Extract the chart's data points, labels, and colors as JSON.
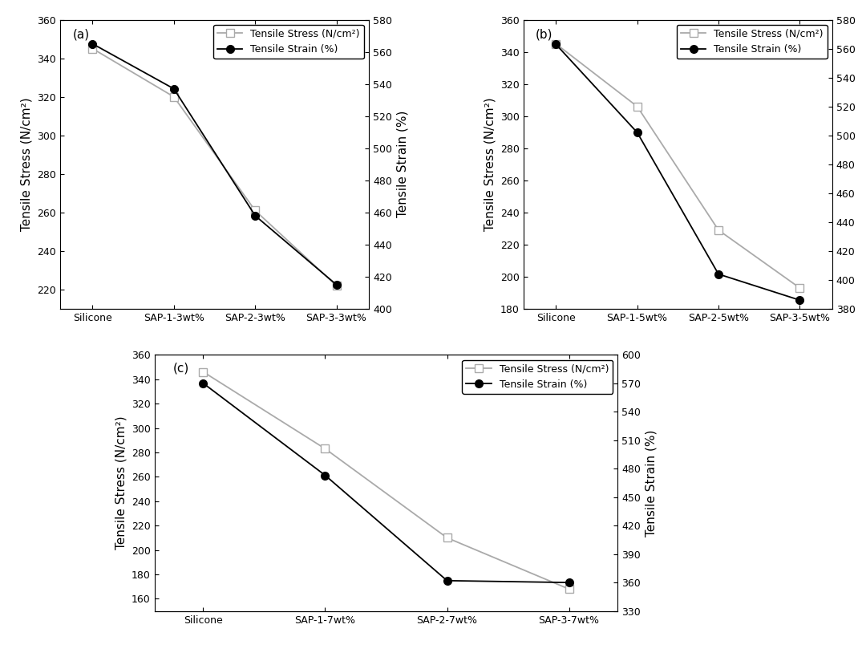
{
  "panels": [
    {
      "label": "(a)",
      "x_labels": [
        "Silicone",
        "SAP-1-3wt%",
        "SAP-2-3wt%",
        "SAP-3-3wt%"
      ],
      "stress": [
        345,
        320,
        261,
        222
      ],
      "strain": [
        565,
        537,
        458,
        415
      ],
      "stress_ylim": [
        210,
        360
      ],
      "stress_yticks": [
        220,
        240,
        260,
        280,
        300,
        320,
        340,
        360
      ],
      "strain_ylim": [
        400,
        580
      ],
      "strain_yticks": [
        400,
        420,
        440,
        460,
        480,
        500,
        520,
        540,
        560,
        580
      ]
    },
    {
      "label": "(b)",
      "x_labels": [
        "Silicone",
        "SAP-1-5wt%",
        "SAP-2-5wt%",
        "SAP-3-5wt%"
      ],
      "stress": [
        345,
        306,
        229,
        193
      ],
      "strain": [
        563,
        502,
        404,
        386
      ],
      "stress_ylim": [
        180,
        360
      ],
      "stress_yticks": [
        180,
        200,
        220,
        240,
        260,
        280,
        300,
        320,
        340,
        360
      ],
      "strain_ylim": [
        380,
        580
      ],
      "strain_yticks": [
        380,
        400,
        420,
        440,
        460,
        480,
        500,
        520,
        540,
        560,
        580
      ]
    },
    {
      "label": "(c)",
      "x_labels": [
        "Silicone",
        "SAP-1-7wt%",
        "SAP-2-7wt%",
        "SAP-3-7wt%"
      ],
      "stress": [
        346,
        283,
        210,
        168
      ],
      "strain": [
        570,
        473,
        362,
        360
      ],
      "stress_ylim": [
        150,
        360
      ],
      "stress_yticks": [
        160,
        180,
        200,
        220,
        240,
        260,
        280,
        300,
        320,
        340,
        360
      ],
      "strain_ylim": [
        330,
        600
      ],
      "strain_yticks": [
        330,
        360,
        390,
        420,
        450,
        480,
        510,
        540,
        570,
        600
      ]
    }
  ],
  "stress_color": "#aaaaaa",
  "strain_color": "#000000",
  "stress_label": "Tensile Stress (N/cm²)",
  "strain_label": "Tensile Strain (%)",
  "left_ylabel": "Tensile Stress (N/cm²)",
  "right_ylabel": "Tensile Strain (%)",
  "fontsize_label": 11,
  "fontsize_tick": 9,
  "fontsize_legend": 9,
  "fontsize_panel": 11,
  "markersize": 7,
  "linewidth": 1.3
}
